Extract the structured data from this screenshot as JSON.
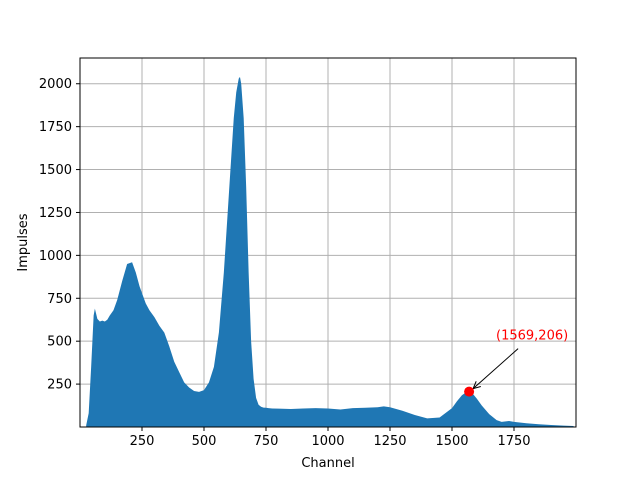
{
  "chart_data": {
    "type": "area",
    "xlabel": "Channel",
    "ylabel": "Impulses",
    "xlim": [
      0,
      2000
    ],
    "ylim": [
      0,
      2150
    ],
    "grid": true,
    "xticks": [
      250,
      500,
      750,
      1000,
      1250,
      1500,
      1750
    ],
    "yticks": [
      250,
      500,
      750,
      1000,
      1250,
      1500,
      1750,
      2000
    ],
    "colors": {
      "fill": "#1f77b4",
      "grid": "#b0b0b0",
      "annotation": "#ff0000"
    },
    "series": [
      {
        "x": [
          25,
          35,
          45,
          55,
          60,
          65,
          70,
          80,
          90,
          100,
          110,
          120,
          135,
          150,
          170,
          190,
          210,
          225,
          240,
          250,
          265,
          280,
          300,
          320,
          340,
          360,
          380,
          400,
          410,
          420,
          440,
          460,
          480,
          500,
          520,
          540,
          560,
          580,
          600,
          620,
          630,
          640,
          645,
          650,
          660,
          670,
          680,
          690,
          700,
          710,
          720,
          730,
          740,
          750,
          760,
          775,
          800,
          850,
          900,
          950,
          1000,
          1050,
          1100,
          1150,
          1200,
          1225,
          1250,
          1300,
          1350,
          1400,
          1450,
          1500,
          1520,
          1540,
          1555,
          1569,
          1580,
          1600,
          1620,
          1650,
          1680,
          1700,
          1730,
          1750,
          1800,
          1850,
          1900,
          1950,
          1990
        ],
        "y": [
          10,
          80,
          350,
          650,
          690,
          660,
          630,
          615,
          620,
          615,
          625,
          650,
          680,
          740,
          850,
          950,
          960,
          900,
          820,
          780,
          720,
          680,
          640,
          590,
          550,
          470,
          380,
          320,
          290,
          260,
          230,
          210,
          205,
          215,
          260,
          350,
          550,
          900,
          1350,
          1800,
          1950,
          2030,
          2040,
          2000,
          1800,
          1400,
          900,
          500,
          280,
          170,
          130,
          118,
          113,
          112,
          110,
          108,
          107,
          105,
          108,
          110,
          108,
          102,
          110,
          112,
          115,
          120,
          115,
          95,
          70,
          50,
          55,
          110,
          150,
          185,
          200,
          206,
          200,
          165,
          125,
          75,
          40,
          30,
          35,
          30,
          22,
          16,
          12,
          8,
          6
        ]
      }
    ],
    "annotation": {
      "text": "(1569,206)",
      "x": 1569,
      "y": 206
    }
  }
}
